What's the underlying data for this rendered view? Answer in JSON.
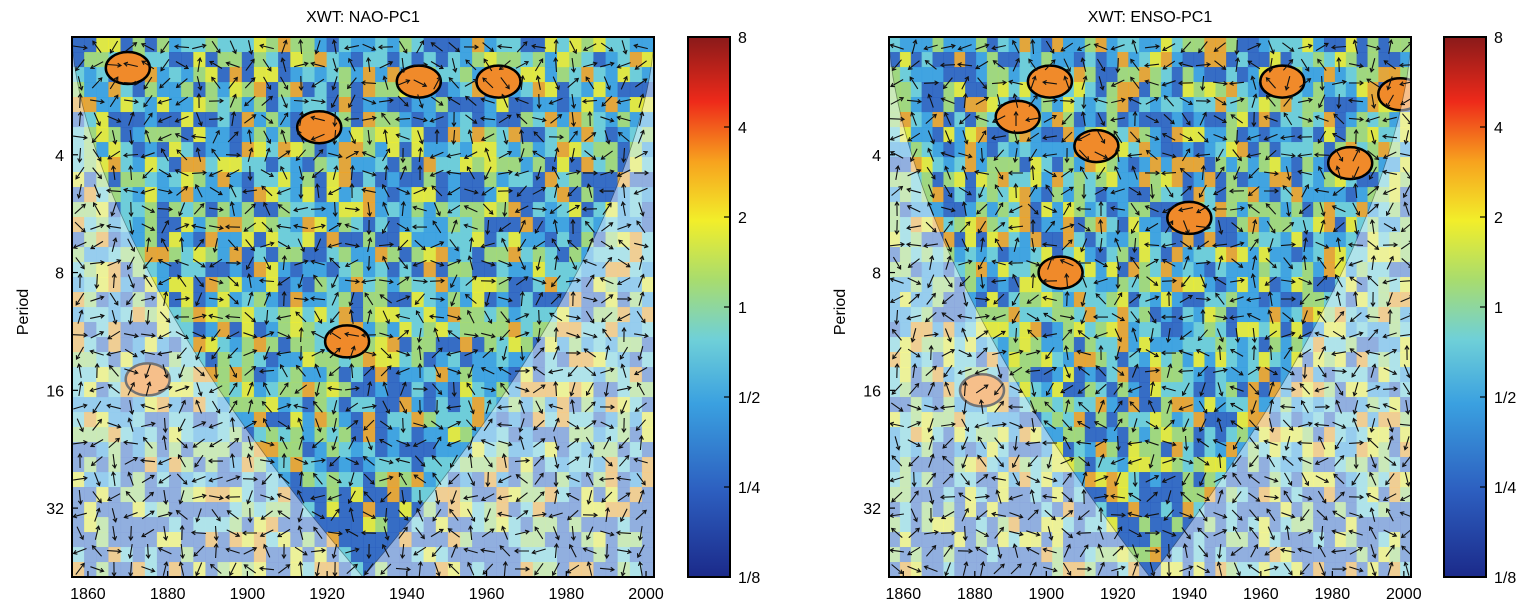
{
  "chart_data": [
    {
      "type": "heatmap",
      "title": "XWT: NAO-PC1",
      "xlabel": "",
      "ylabel": "Period",
      "x_range": [
        1856,
        2002
      ],
      "y_range_period": [
        2,
        48
      ],
      "x_ticks": [
        1860,
        1880,
        1900,
        1920,
        1940,
        1960,
        1980,
        2000
      ],
      "y_ticks": [
        4,
        8,
        16,
        32
      ],
      "colorbar": {
        "ticks": [
          "1/8",
          "1/4",
          "1/2",
          "1",
          "2",
          "4",
          "8"
        ],
        "range": [
          0.125,
          8
        ]
      },
      "significant_regions": [
        {
          "year": 1870,
          "period": 2.4
        },
        {
          "year": 1918,
          "period": 3.4
        },
        {
          "year": 1943,
          "period": 2.6
        },
        {
          "year": 1963,
          "period": 2.6
        },
        {
          "year": 1925,
          "period": 12
        },
        {
          "year": 1875,
          "period": 15
        }
      ]
    },
    {
      "type": "heatmap",
      "title": "XWT: ENSO-PC1",
      "xlabel": "",
      "ylabel": "Period",
      "x_range": [
        1856,
        2002
      ],
      "y_range_period": [
        2,
        48
      ],
      "x_ticks": [
        1860,
        1880,
        1900,
        1920,
        1940,
        1960,
        1980,
        2000
      ],
      "y_ticks": [
        4,
        8,
        16,
        32
      ],
      "colorbar": {
        "ticks": [
          "1/8",
          "1/4",
          "1/2",
          "1",
          "2",
          "4",
          "8"
        ],
        "range": [
          0.125,
          8
        ]
      },
      "significant_regions": [
        {
          "year": 1901,
          "period": 2.6
        },
        {
          "year": 1892,
          "period": 3.2
        },
        {
          "year": 1914,
          "period": 3.8
        },
        {
          "year": 1940,
          "period": 5.8
        },
        {
          "year": 1904,
          "period": 8
        },
        {
          "year": 1882,
          "period": 16
        },
        {
          "year": 1966,
          "period": 2.6
        },
        {
          "year": 1985,
          "period": 4.2
        },
        {
          "year": 1999,
          "period": 2.8
        }
      ]
    }
  ]
}
